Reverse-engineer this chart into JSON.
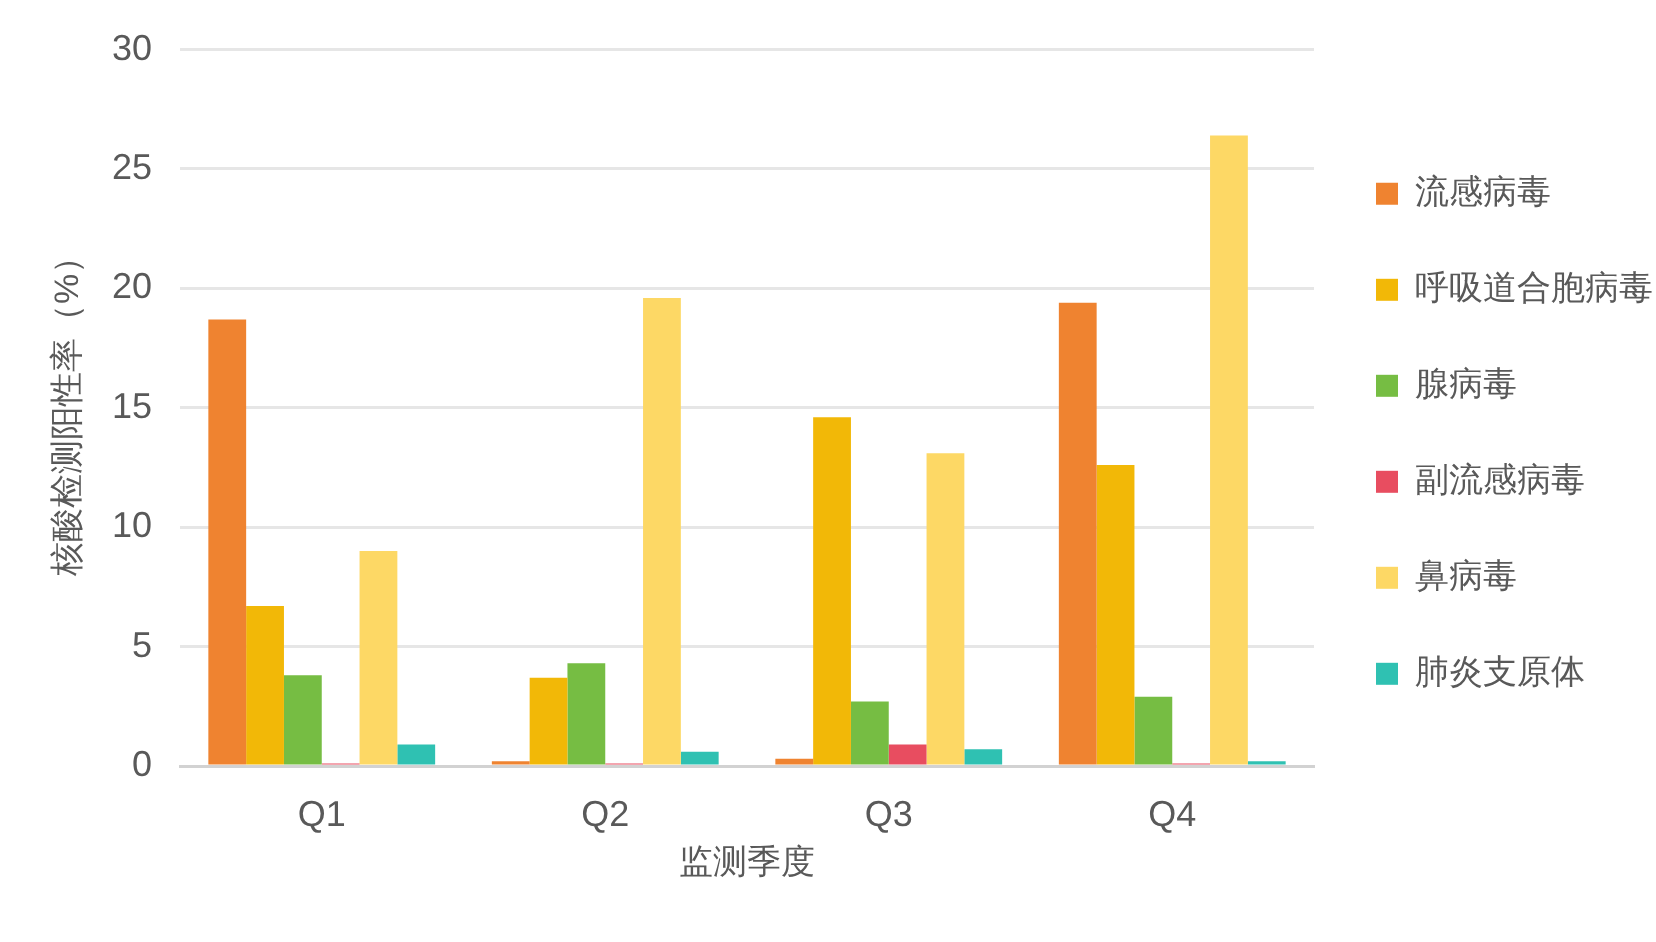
{
  "chart_data": {
    "type": "bar",
    "xlabel": "监测季度",
    "ylabel": "核酸检测阳性率（%）",
    "categories": [
      "Q1",
      "Q2",
      "Q3",
      "Q4"
    ],
    "series": [
      {
        "name": "流感病毒",
        "color": "#ef8330",
        "values": [
          18.7,
          0.2,
          0.3,
          19.4
        ]
      },
      {
        "name": "呼吸道合胞病毒",
        "color": "#f2b807",
        "values": [
          6.7,
          3.7,
          14.6,
          12.6
        ]
      },
      {
        "name": "腺病毒",
        "color": "#76bd43",
        "values": [
          3.8,
          4.3,
          2.7,
          2.9
        ]
      },
      {
        "name": "副流感病毒",
        "color": "#e84d60",
        "values": [
          0.1,
          0.1,
          0.9,
          0.1
        ]
      },
      {
        "name": "鼻病毒",
        "color": "#fdd865",
        "values": [
          9.0,
          19.6,
          13.1,
          26.4
        ]
      },
      {
        "name": "肺炎支原体",
        "color": "#2fc1b2",
        "values": [
          0.9,
          0.6,
          0.7,
          0.2
        ]
      }
    ],
    "ylim": [
      0,
      30
    ],
    "yticks": [
      0,
      5,
      10,
      15,
      20,
      25,
      30
    ],
    "grid": "y",
    "legend": "right"
  }
}
